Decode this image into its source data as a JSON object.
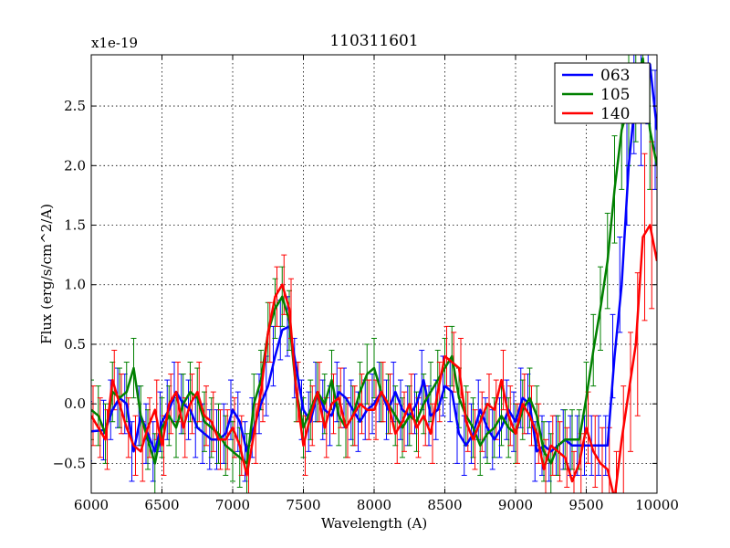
{
  "chart_data": {
    "type": "line",
    "title": "110311601",
    "xlabel": "Wavelength (A)",
    "ylabel": "Flux (erg/s/cm^2/A)",
    "offset_text": "x1e-19",
    "xlim": [
      6000,
      10000
    ],
    "ylim": [
      -0.75,
      2.93
    ],
    "xticks": [
      6000,
      6500,
      7000,
      7500,
      8000,
      8500,
      9000,
      9500,
      10000
    ],
    "xtick_labels": [
      "6000",
      "6500",
      "7000",
      "7500",
      "8000",
      "8500",
      "9000",
      "9500",
      "10000"
    ],
    "yticks": [
      -0.5,
      0.0,
      0.5,
      1.0,
      1.5,
      2.0,
      2.5
    ],
    "ytick_labels": [
      "−0.5",
      "0.0",
      "0.5",
      "1.0",
      "1.5",
      "2.0",
      "2.5"
    ],
    "grid": true,
    "legend_position": "top-right",
    "series": [
      {
        "name": "063",
        "color": "#0000ff",
        "x": [
          6000,
          6100,
          6150,
          6200,
          6250,
          6300,
          6350,
          6400,
          6450,
          6500,
          6550,
          6600,
          6650,
          6700,
          6750,
          6800,
          6850,
          6900,
          6950,
          7000,
          7050,
          7100,
          7150,
          7200,
          7250,
          7300,
          7350,
          7400,
          7450,
          7500,
          7550,
          7600,
          7650,
          7700,
          7750,
          7800,
          7850,
          7900,
          7950,
          8000,
          8050,
          8100,
          8150,
          8200,
          8250,
          8300,
          8350,
          8400,
          8450,
          8500,
          8550,
          8600,
          8650,
          8700,
          8750,
          8800,
          8850,
          8900,
          8950,
          9000,
          9050,
          9100,
          9150,
          9200,
          9250,
          9300,
          9350,
          9400,
          9450,
          9500,
          9550,
          9600,
          9650,
          9700,
          9750,
          9800,
          9850,
          9900,
          9950,
          10000
        ],
        "y": [
          -0.23,
          -0.22,
          -0.05,
          0.05,
          0.0,
          -0.4,
          -0.1,
          -0.25,
          -0.4,
          -0.15,
          -0.05,
          0.1,
          0.0,
          -0.05,
          -0.2,
          -0.25,
          -0.3,
          -0.3,
          -0.25,
          -0.05,
          -0.15,
          -0.4,
          -0.2,
          0.0,
          0.15,
          0.4,
          0.62,
          0.65,
          0.3,
          -0.05,
          -0.15,
          0.1,
          -0.05,
          -0.1,
          0.1,
          0.05,
          -0.05,
          -0.15,
          -0.05,
          0.0,
          0.1,
          -0.05,
          0.1,
          -0.05,
          -0.1,
          0.0,
          0.2,
          -0.1,
          -0.05,
          0.15,
          0.1,
          -0.25,
          -0.35,
          -0.25,
          -0.05,
          -0.2,
          -0.3,
          -0.2,
          -0.05,
          -0.15,
          0.05,
          0.0,
          -0.4,
          -0.35,
          -0.4,
          -0.35,
          -0.3,
          -0.35,
          -0.35,
          -0.35,
          -0.35,
          -0.35,
          -0.35,
          0.4,
          1.0,
          2.0,
          2.6,
          2.5,
          2.85,
          2.3
        ],
        "err": [
          0.25,
          0.25,
          0.25,
          0.25,
          0.25,
          0.25,
          0.25,
          0.25,
          0.25,
          0.25,
          0.25,
          0.25,
          0.25,
          0.25,
          0.25,
          0.25,
          0.25,
          0.25,
          0.25,
          0.25,
          0.25,
          0.25,
          0.25,
          0.25,
          0.25,
          0.25,
          0.25,
          0.25,
          0.25,
          0.25,
          0.25,
          0.25,
          0.25,
          0.25,
          0.25,
          0.25,
          0.25,
          0.25,
          0.25,
          0.25,
          0.25,
          0.25,
          0.25,
          0.25,
          0.25,
          0.25,
          0.25,
          0.25,
          0.25,
          0.25,
          0.25,
          0.25,
          0.25,
          0.25,
          0.25,
          0.25,
          0.25,
          0.25,
          0.25,
          0.25,
          0.25,
          0.25,
          0.25,
          0.25,
          0.25,
          0.25,
          0.25,
          0.25,
          0.25,
          0.25,
          0.25,
          0.25,
          0.25,
          0.35,
          0.4,
          0.5,
          0.5,
          0.5,
          0.5,
          0.5
        ]
      },
      {
        "name": "105",
        "color": "#008000",
        "x": [
          6000,
          6050,
          6100,
          6150,
          6200,
          6250,
          6300,
          6350,
          6400,
          6450,
          6500,
          6550,
          6600,
          6650,
          6700,
          6750,
          6800,
          6850,
          6900,
          6950,
          7000,
          7050,
          7100,
          7150,
          7200,
          7250,
          7300,
          7350,
          7400,
          7450,
          7500,
          7550,
          7600,
          7650,
          7700,
          7750,
          7800,
          7850,
          7900,
          7950,
          8000,
          8050,
          8100,
          8150,
          8200,
          8250,
          8300,
          8350,
          8400,
          8450,
          8500,
          8550,
          8600,
          8650,
          8700,
          8750,
          8800,
          8850,
          8900,
          8950,
          9000,
          9050,
          9100,
          9150,
          9200,
          9250,
          9300,
          9350,
          9400,
          9450,
          9500,
          9550,
          9600,
          9650,
          9700,
          9750,
          9800,
          9850,
          9900,
          9950,
          10000
        ],
        "y": [
          -0.05,
          -0.1,
          -0.25,
          0.1,
          0.05,
          0.1,
          0.3,
          -0.1,
          -0.3,
          -0.5,
          -0.2,
          -0.1,
          -0.2,
          0.0,
          0.1,
          0.05,
          -0.15,
          -0.2,
          -0.25,
          -0.35,
          -0.4,
          -0.45,
          -0.5,
          0.0,
          0.2,
          0.6,
          0.8,
          0.9,
          0.7,
          0.1,
          -0.2,
          -0.05,
          0.1,
          0.0,
          0.2,
          -0.1,
          -0.2,
          -0.1,
          0.1,
          0.25,
          0.3,
          0.1,
          0.0,
          -0.1,
          -0.2,
          -0.1,
          -0.15,
          0.0,
          0.1,
          0.2,
          0.3,
          0.4,
          0.05,
          -0.1,
          -0.2,
          -0.35,
          -0.25,
          -0.2,
          -0.1,
          -0.2,
          -0.25,
          -0.05,
          0.05,
          -0.1,
          -0.4,
          -0.5,
          -0.35,
          -0.3,
          -0.3,
          -0.3,
          0.05,
          0.45,
          0.8,
          1.2,
          1.8,
          2.3,
          2.5,
          2.7,
          2.9,
          2.3,
          2.0
        ],
        "err": [
          0.25,
          0.25,
          0.25,
          0.25,
          0.25,
          0.25,
          0.25,
          0.25,
          0.25,
          0.25,
          0.25,
          0.25,
          0.25,
          0.25,
          0.25,
          0.25,
          0.25,
          0.25,
          0.25,
          0.25,
          0.25,
          0.25,
          0.25,
          0.25,
          0.25,
          0.25,
          0.25,
          0.25,
          0.25,
          0.25,
          0.25,
          0.25,
          0.25,
          0.25,
          0.25,
          0.25,
          0.25,
          0.25,
          0.25,
          0.25,
          0.25,
          0.25,
          0.25,
          0.25,
          0.25,
          0.25,
          0.25,
          0.25,
          0.25,
          0.25,
          0.25,
          0.25,
          0.25,
          0.25,
          0.25,
          0.25,
          0.25,
          0.25,
          0.25,
          0.25,
          0.25,
          0.25,
          0.25,
          0.25,
          0.25,
          0.25,
          0.25,
          0.25,
          0.25,
          0.25,
          0.3,
          0.3,
          0.35,
          0.4,
          0.45,
          0.5,
          0.5,
          0.5,
          0.5,
          0.5,
          0.5
        ]
      },
      {
        "name": "140",
        "color": "#ff0000",
        "x": [
          6000,
          6050,
          6100,
          6150,
          6200,
          6250,
          6300,
          6350,
          6400,
          6450,
          6500,
          6550,
          6600,
          6650,
          6700,
          6750,
          6800,
          6850,
          6900,
          6950,
          7000,
          7050,
          7100,
          7150,
          7200,
          7250,
          7300,
          7350,
          7400,
          7450,
          7500,
          7550,
          7600,
          7650,
          7700,
          7750,
          7800,
          7850,
          7900,
          7950,
          8000,
          8050,
          8100,
          8150,
          8200,
          8250,
          8300,
          8350,
          8400,
          8450,
          8500,
          8550,
          8600,
          8650,
          8700,
          8750,
          8800,
          8850,
          8900,
          8950,
          9000,
          9050,
          9100,
          9150,
          9200,
          9250,
          9300,
          9350,
          9400,
          9450,
          9500,
          9550,
          9600,
          9650,
          9700,
          9750,
          9800,
          9850,
          9900,
          9950,
          10000
        ],
        "y": [
          -0.1,
          -0.2,
          -0.3,
          0.2,
          0.0,
          -0.2,
          -0.35,
          -0.4,
          -0.2,
          -0.05,
          -0.35,
          0.0,
          0.1,
          -0.2,
          0.0,
          0.1,
          -0.1,
          -0.15,
          -0.3,
          -0.3,
          -0.2,
          -0.35,
          -0.6,
          -0.25,
          0.1,
          0.6,
          0.9,
          1.0,
          0.8,
          0.1,
          -0.35,
          -0.1,
          0.1,
          -0.2,
          0.0,
          0.05,
          -0.2,
          -0.1,
          0.0,
          -0.05,
          -0.05,
          0.1,
          0.0,
          -0.25,
          -0.15,
          0.0,
          -0.2,
          -0.1,
          -0.25,
          0.1,
          0.4,
          0.35,
          0.3,
          -0.15,
          -0.3,
          -0.15,
          0.0,
          -0.05,
          0.2,
          -0.1,
          -0.25,
          0.0,
          -0.1,
          -0.25,
          -0.55,
          -0.35,
          -0.4,
          -0.45,
          -0.65,
          -0.5,
          -0.2,
          -0.4,
          -0.5,
          -0.55,
          -0.8,
          -0.3,
          0.1,
          0.5,
          1.4,
          1.5,
          1.2
        ],
        "err": [
          0.25,
          0.25,
          0.25,
          0.25,
          0.25,
          0.25,
          0.25,
          0.25,
          0.25,
          0.25,
          0.25,
          0.25,
          0.25,
          0.25,
          0.25,
          0.25,
          0.25,
          0.25,
          0.25,
          0.25,
          0.25,
          0.25,
          0.25,
          0.25,
          0.25,
          0.25,
          0.25,
          0.25,
          0.25,
          0.25,
          0.25,
          0.25,
          0.25,
          0.25,
          0.25,
          0.25,
          0.25,
          0.25,
          0.25,
          0.25,
          0.25,
          0.25,
          0.25,
          0.25,
          0.25,
          0.25,
          0.25,
          0.25,
          0.25,
          0.25,
          0.25,
          0.25,
          0.25,
          0.25,
          0.25,
          0.25,
          0.25,
          0.25,
          0.25,
          0.25,
          0.25,
          0.25,
          0.25,
          0.25,
          0.25,
          0.25,
          0.25,
          0.25,
          0.25,
          0.25,
          0.3,
          0.3,
          0.3,
          0.35,
          0.4,
          0.45,
          0.5,
          0.6,
          0.7,
          0.7,
          0.7
        ]
      }
    ]
  }
}
